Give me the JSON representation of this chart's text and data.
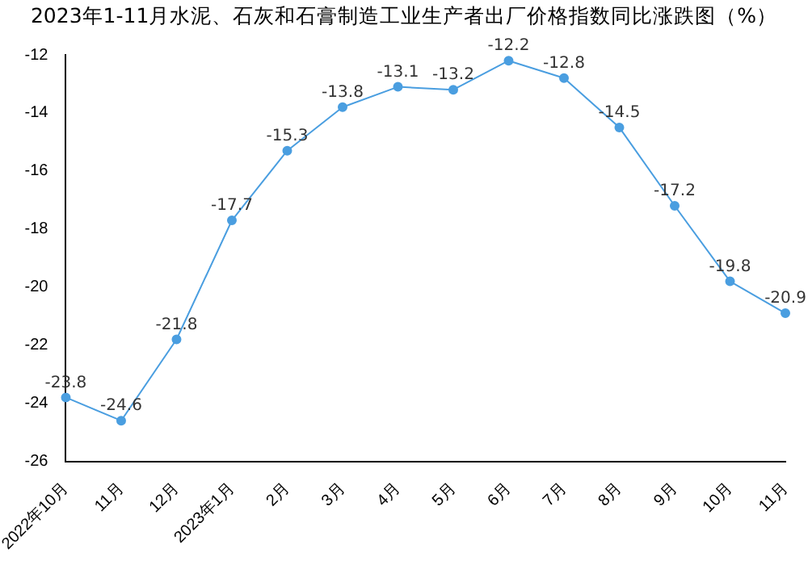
{
  "chart_data": {
    "type": "line",
    "title": "2023年1-11月水泥、石灰和石膏制造工业生产者出厂价格指数同比涨跌图（%）",
    "categories": [
      "2022年10月",
      "11月",
      "12月",
      "2023年1月",
      "2月",
      "3月",
      "4月",
      "5月",
      "6月",
      "7月",
      "8月",
      "9月",
      "10月",
      "11月"
    ],
    "series": [
      {
        "color": "#4a9ee0",
        "values": [
          -23.8,
          -24.6,
          -21.8,
          -17.7,
          -15.3,
          -13.8,
          -13.1,
          -13.2,
          -12.2,
          -12.8,
          -14.5,
          -17.2,
          -19.8,
          -20.9
        ]
      }
    ],
    "ylim": [
      -26,
      -12
    ],
    "yticks": [
      -26,
      -24,
      -22,
      -20,
      -18,
      -16,
      -14,
      -12
    ],
    "grid": false,
    "legend": false,
    "marker": "circle",
    "data_labels": true
  }
}
